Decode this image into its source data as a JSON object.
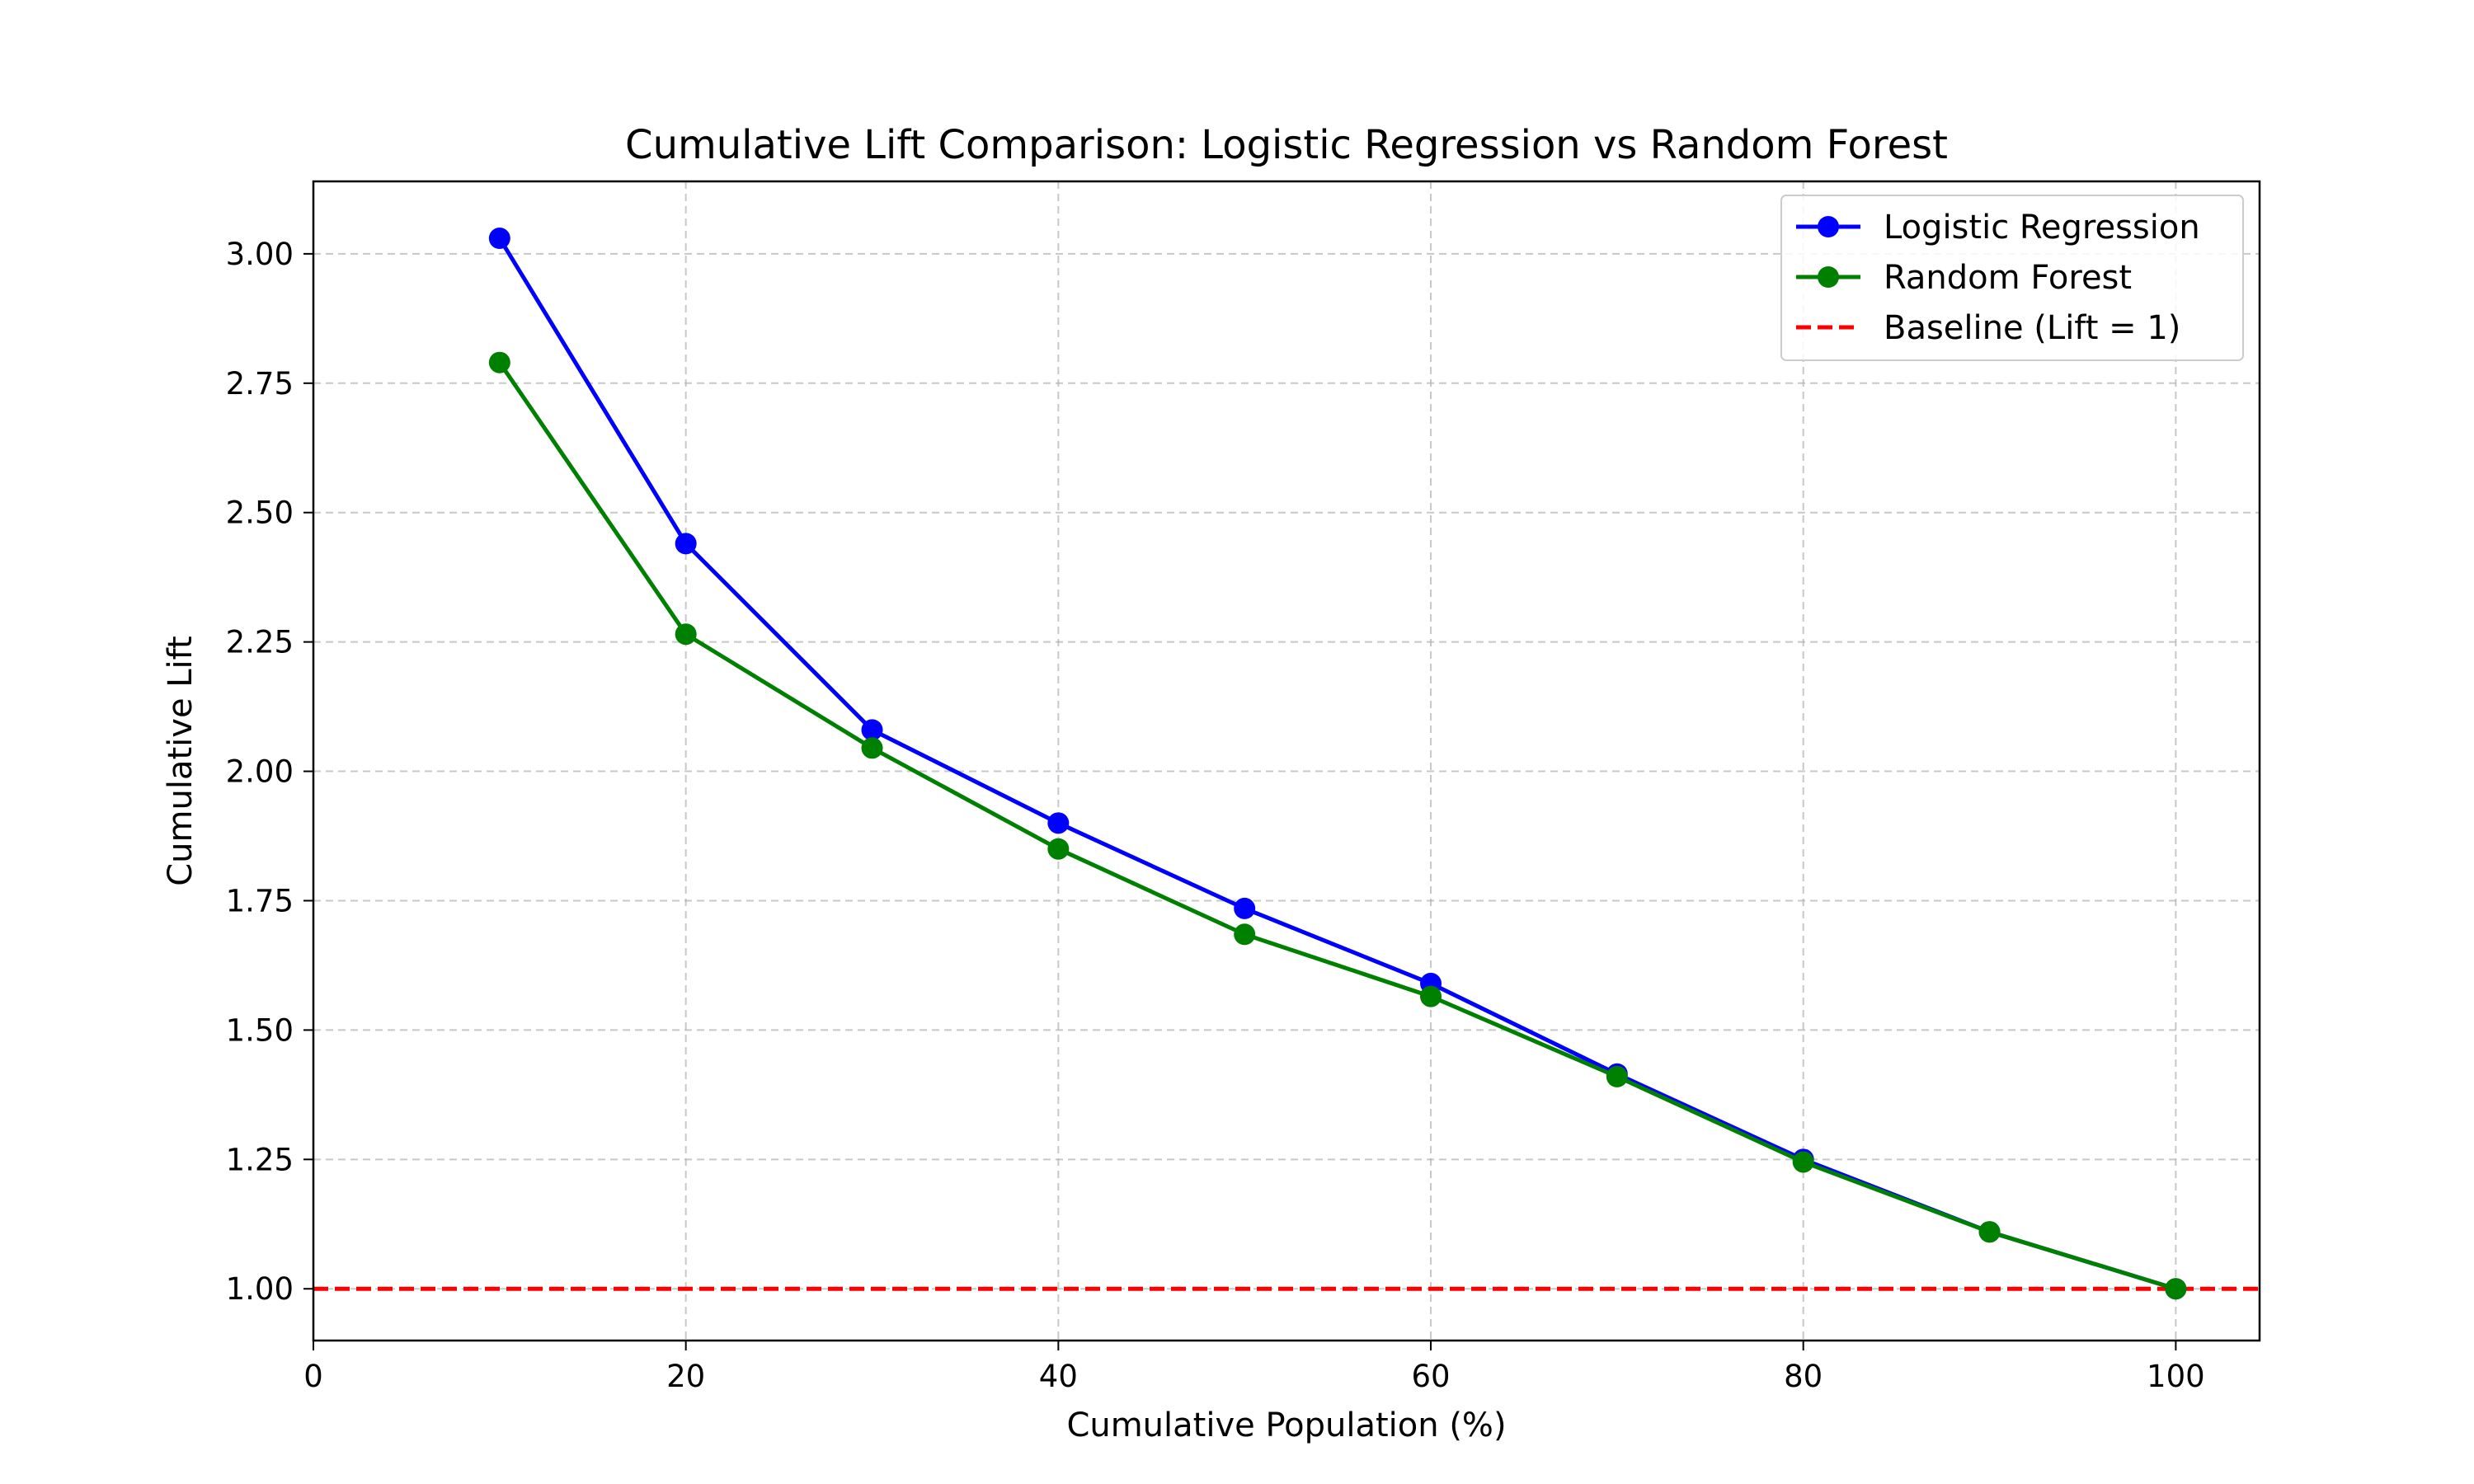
{
  "chart_data": {
    "type": "line",
    "title": "Cumulative Lift Comparison: Logistic Regression vs Random Forest",
    "xlabel": "Cumulative Population (%)",
    "ylabel": "Cumulative Lift",
    "xlim": [
      0,
      104.5
    ],
    "ylim": [
      0.9,
      3.14
    ],
    "xticks": [
      0,
      20,
      40,
      60,
      80,
      100
    ],
    "xtick_labels": [
      "0",
      "20",
      "40",
      "60",
      "80",
      "100"
    ],
    "yticks": [
      1.0,
      1.25,
      1.5,
      1.75,
      2.0,
      2.25,
      2.5,
      2.75,
      3.0
    ],
    "ytick_labels": [
      "1.00",
      "1.25",
      "1.50",
      "1.75",
      "2.00",
      "2.25",
      "2.50",
      "2.75",
      "3.00"
    ],
    "grid": true,
    "legend_position": "top-right",
    "x": [
      10,
      20,
      30,
      40,
      50,
      60,
      70,
      80,
      90,
      100
    ],
    "series": [
      {
        "name": "Logistic Regression",
        "color": "#0000ff",
        "marker": "circle",
        "line_style": "solid",
        "values": [
          3.03,
          2.44,
          2.08,
          1.9,
          1.735,
          1.59,
          1.415,
          1.25,
          1.11,
          1.0
        ]
      },
      {
        "name": "Random Forest",
        "color": "#008000",
        "marker": "circle",
        "line_style": "solid",
        "values": [
          2.79,
          2.265,
          2.045,
          1.85,
          1.685,
          1.565,
          1.41,
          1.245,
          1.11,
          1.0
        ]
      }
    ],
    "baseline": {
      "name": "Baseline (Lift = 1)",
      "value": 1.0,
      "color": "#ff0000",
      "line_style": "dashed"
    }
  }
}
